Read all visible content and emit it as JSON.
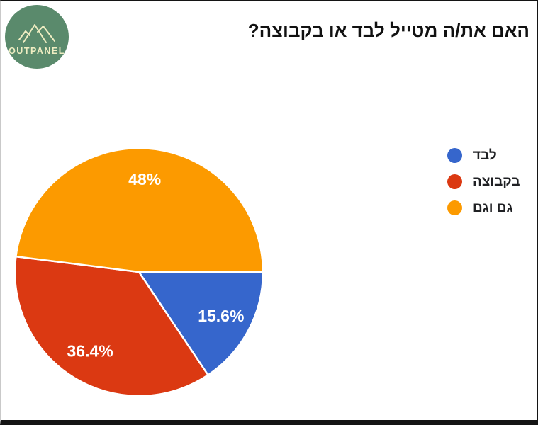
{
  "logo": {
    "text": "OUTPANEL",
    "bg_color": "#5A8A6C",
    "text_color": "#EFEDC2",
    "icon": "mountains-icon"
  },
  "title": "האם את/ה מטייל לבד או בקבוצה?",
  "chart_data": {
    "type": "pie",
    "title": "האם את/ה מטייל לבד או בקבוצה?",
    "legend_position": "right",
    "start_angle_deg": 0,
    "direction": "clockwise",
    "label_color": "#ffffff",
    "slices": [
      {
        "label": "לבד",
        "value": 15.6,
        "display": "15.6%",
        "color": "#3666CC"
      },
      {
        "label": "בקבוצה",
        "value": 36.4,
        "display": "36.4%",
        "color": "#DB3912"
      },
      {
        "label": "גם וגם",
        "value": 48.0,
        "display": "48%",
        "color": "#FC9A00"
      }
    ]
  }
}
